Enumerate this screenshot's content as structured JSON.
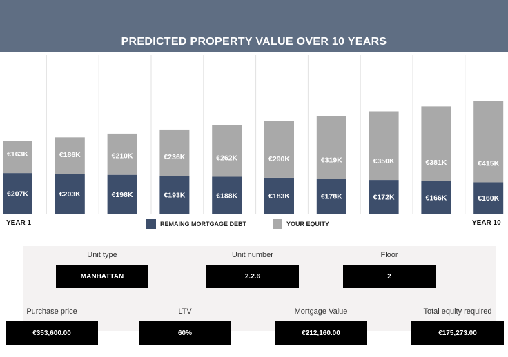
{
  "title": "PREDICTED PROPERTY VALUE OVER 10 YEARS",
  "year_start_label": "YEAR 1",
  "year_end_label": "YEAR 10",
  "legend": {
    "debt": "REMAING MORTGAGE DEBT",
    "equity": "YOUR EQUITY"
  },
  "colors": {
    "header": "#5f6e83",
    "debt": "#3d4e6b",
    "equity": "#a9a9a9"
  },
  "chart_data": {
    "type": "bar",
    "stacked": true,
    "title": "PREDICTED PROPERTY VALUE OVER 10 YEARS",
    "categories": [
      "YEAR 1",
      "",
      "",
      "",
      "",
      "",
      "",
      "",
      "",
      "YEAR 10"
    ],
    "series": [
      {
        "name": "REMAING MORTGAGE DEBT",
        "values": [
          207,
          203,
          198,
          193,
          188,
          183,
          178,
          172,
          166,
          160
        ],
        "labels": [
          "€207K",
          "€203K",
          "€198K",
          "€193K",
          "€188K",
          "€183K",
          "€178K",
          "€172K",
          "€166K",
          "€160K"
        ]
      },
      {
        "name": "YOUR EQUITY",
        "values": [
          163,
          186,
          210,
          236,
          262,
          290,
          319,
          350,
          381,
          415
        ],
        "labels": [
          "€163K",
          "€186K",
          "€210K",
          "€236K",
          "€262K",
          "€290K",
          "€319K",
          "€350K",
          "€381K",
          "€415K"
        ]
      }
    ],
    "ylim": [
      0,
      600
    ],
    "grid": "vertical",
    "legend_position": "bottom"
  },
  "fields": {
    "unit_type": {
      "label": "Unit type",
      "value": "MANHATTAN"
    },
    "unit_number": {
      "label": "Unit number",
      "value": "2.2.6"
    },
    "floor": {
      "label": "Floor",
      "value": "2"
    },
    "purchase_price": {
      "label": "Purchase price",
      "value": "€353,600.00"
    },
    "ltv": {
      "label": "LTV",
      "value": "60%"
    },
    "mortgage_value": {
      "label": "Mortgage Value",
      "value": "€212,160.00"
    },
    "total_equity": {
      "label": "Total equity required",
      "value": "€175,273.00"
    }
  }
}
